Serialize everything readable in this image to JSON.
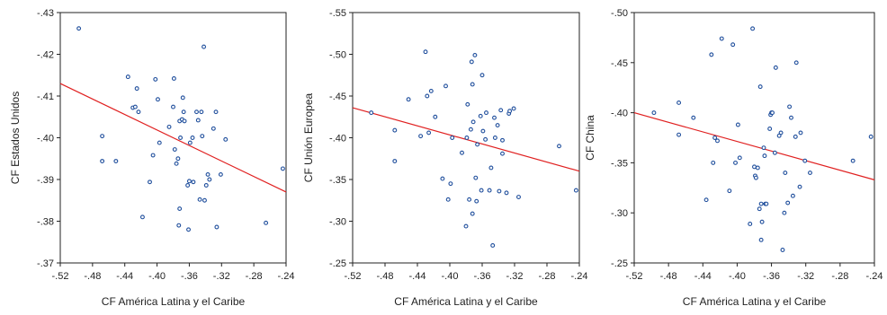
{
  "chart_data": [
    {
      "type": "scatter",
      "xlabel": "CF América Latina y el Caribe",
      "ylabel": "CF Estados Unidos",
      "xlim": [
        -0.52,
        -0.24
      ],
      "ylim": [
        -0.43,
        -0.37
      ],
      "xticks": [
        -0.52,
        -0.48,
        -0.44,
        -0.4,
        -0.36,
        -0.32,
        -0.28,
        -0.24
      ],
      "xtick_labels": [
        "-.52",
        "-.48",
        "-.44",
        "-.40",
        "-.36",
        "-.32",
        "-.28",
        "-.24"
      ],
      "yticks": [
        -0.37,
        -0.38,
        -0.39,
        -0.4,
        -0.41,
        -0.42,
        -0.43
      ],
      "ytick_labels": [
        "-.37",
        "-.38",
        "-.39",
        "-.40",
        "-.41",
        "-.42",
        "-.43"
      ],
      "grid": false,
      "trend_line": {
        "x": [
          -0.52,
          -0.24
        ],
        "y": [
          -0.413,
          -0.387
        ]
      },
      "points": [
        [
          -0.497,
          -0.4262
        ],
        [
          -0.468,
          -0.3944
        ],
        [
          -0.468,
          -0.4004
        ],
        [
          -0.451,
          -0.3944
        ],
        [
          -0.436,
          -0.4146
        ],
        [
          -0.43,
          -0.4072
        ],
        [
          -0.427,
          -0.4074
        ],
        [
          -0.425,
          -0.4118
        ],
        [
          -0.423,
          -0.4062
        ],
        [
          -0.418,
          -0.381
        ],
        [
          -0.409,
          -0.3894
        ],
        [
          -0.405,
          -0.3958
        ],
        [
          -0.402,
          -0.414
        ],
        [
          -0.399,
          -0.4092
        ],
        [
          -0.397,
          -0.3988
        ],
        [
          -0.385,
          -0.4026
        ],
        [
          -0.38,
          -0.4074
        ],
        [
          -0.379,
          -0.4142
        ],
        [
          -0.378,
          -0.3972
        ],
        [
          -0.376,
          -0.3938
        ],
        [
          -0.374,
          -0.395
        ],
        [
          -0.373,
          -0.379
        ],
        [
          -0.372,
          -0.383
        ],
        [
          -0.372,
          -0.404
        ],
        [
          -0.371,
          -0.4
        ],
        [
          -0.369,
          -0.4044
        ],
        [
          -0.368,
          -0.4096
        ],
        [
          -0.367,
          -0.4062
        ],
        [
          -0.366,
          -0.404
        ],
        [
          -0.362,
          -0.3886
        ],
        [
          -0.361,
          -0.378
        ],
        [
          -0.36,
          -0.3896
        ],
        [
          -0.359,
          -0.3988
        ],
        [
          -0.356,
          -0.4
        ],
        [
          -0.355,
          -0.3894
        ],
        [
          -0.351,
          -0.4062
        ],
        [
          -0.349,
          -0.4042
        ],
        [
          -0.347,
          -0.3852
        ],
        [
          -0.345,
          -0.4062
        ],
        [
          -0.344,
          -0.4004
        ],
        [
          -0.342,
          -0.4218
        ],
        [
          -0.341,
          -0.385
        ],
        [
          -0.339,
          -0.3886
        ],
        [
          -0.337,
          -0.3912
        ],
        [
          -0.335,
          -0.39
        ],
        [
          -0.33,
          -0.4022
        ],
        [
          -0.327,
          -0.4062
        ],
        [
          -0.326,
          -0.3786
        ],
        [
          -0.321,
          -0.3912
        ],
        [
          -0.315,
          -0.3996
        ],
        [
          -0.265,
          -0.3796
        ],
        [
          -0.244,
          -0.3926
        ]
      ]
    },
    {
      "type": "scatter",
      "xlabel": "CF América Latina y el Caribe",
      "ylabel": "CF Unión Europea",
      "xlim": [
        -0.52,
        -0.24
      ],
      "ylim": [
        -0.55,
        -0.25
      ],
      "xticks": [
        -0.52,
        -0.48,
        -0.44,
        -0.4,
        -0.36,
        -0.32,
        -0.28,
        -0.24
      ],
      "xtick_labels": [
        "-.52",
        "-.48",
        "-.44",
        "-.40",
        "-.36",
        "-.32",
        "-.28",
        "-.24"
      ],
      "yticks": [
        -0.25,
        -0.3,
        -0.35,
        -0.4,
        -0.45,
        -0.5,
        -0.55
      ],
      "ytick_labels": [
        "-.25",
        "-.30",
        "-.35",
        "-.40",
        "-.45",
        "-.50",
        "-.55"
      ],
      "grid": false,
      "trend_line": {
        "x": [
          -0.52,
          -0.24
        ],
        "y": [
          -0.436,
          -0.36
        ]
      },
      "points": [
        [
          -0.497,
          -0.43
        ],
        [
          -0.468,
          -0.372
        ],
        [
          -0.468,
          -0.409
        ],
        [
          -0.451,
          -0.446
        ],
        [
          -0.436,
          -0.402
        ],
        [
          -0.43,
          -0.503
        ],
        [
          -0.428,
          -0.45
        ],
        [
          -0.426,
          -0.406
        ],
        [
          -0.423,
          -0.456
        ],
        [
          -0.418,
          -0.425
        ],
        [
          -0.409,
          -0.351
        ],
        [
          -0.405,
          -0.462
        ],
        [
          -0.402,
          -0.326
        ],
        [
          -0.399,
          -0.345
        ],
        [
          -0.397,
          -0.4
        ],
        [
          -0.385,
          -0.382
        ],
        [
          -0.38,
          -0.294
        ],
        [
          -0.379,
          -0.4
        ],
        [
          -0.378,
          -0.44
        ],
        [
          -0.376,
          -0.326
        ],
        [
          -0.374,
          -0.41
        ],
        [
          -0.373,
          -0.491
        ],
        [
          -0.372,
          -0.309
        ],
        [
          -0.372,
          -0.464
        ],
        [
          -0.371,
          -0.419
        ],
        [
          -0.369,
          -0.499
        ],
        [
          -0.368,
          -0.352
        ],
        [
          -0.367,
          -0.324
        ],
        [
          -0.366,
          -0.392
        ],
        [
          -0.362,
          -0.426
        ],
        [
          -0.361,
          -0.337
        ],
        [
          -0.36,
          -0.475
        ],
        [
          -0.359,
          -0.408
        ],
        [
          -0.356,
          -0.398
        ],
        [
          -0.355,
          -0.43
        ],
        [
          -0.351,
          -0.337
        ],
        [
          -0.349,
          -0.364
        ],
        [
          -0.347,
          -0.271
        ],
        [
          -0.345,
          -0.424
        ],
        [
          -0.344,
          -0.4
        ],
        [
          -0.341,
          -0.415
        ],
        [
          -0.339,
          -0.336
        ],
        [
          -0.337,
          -0.433
        ],
        [
          -0.335,
          -0.397
        ],
        [
          -0.335,
          -0.381
        ],
        [
          -0.33,
          -0.334
        ],
        [
          -0.327,
          -0.429
        ],
        [
          -0.326,
          -0.432
        ],
        [
          -0.321,
          -0.435
        ],
        [
          -0.315,
          -0.329
        ],
        [
          -0.265,
          -0.39
        ],
        [
          -0.244,
          -0.337
        ]
      ]
    },
    {
      "type": "scatter",
      "xlabel": "CF América Latina y el Caribe",
      "ylabel": "CF China",
      "xlim": [
        -0.52,
        -0.24
      ],
      "ylim": [
        -0.5,
        -0.25
      ],
      "xticks": [
        -0.52,
        -0.48,
        -0.44,
        -0.4,
        -0.36,
        -0.32,
        -0.28,
        -0.24
      ],
      "xtick_labels": [
        "-.52",
        "-.48",
        "-.44",
        "-.40",
        "-.36",
        "-.32",
        "-.28",
        "-.24"
      ],
      "yticks": [
        -0.25,
        -0.3,
        -0.35,
        -0.4,
        -0.45,
        -0.5
      ],
      "ytick_labels": [
        "-.25",
        "-.30",
        "-.35",
        "-.40",
        "-.45",
        "-.50"
      ],
      "grid": false,
      "trend_line": {
        "x": [
          -0.52,
          -0.24
        ],
        "y": [
          -0.4,
          -0.333
        ]
      },
      "points": [
        [
          -0.497,
          -0.4
        ],
        [
          -0.468,
          -0.378
        ],
        [
          -0.468,
          -0.41
        ],
        [
          -0.451,
          -0.395
        ],
        [
          -0.436,
          -0.313
        ],
        [
          -0.43,
          -0.458
        ],
        [
          -0.428,
          -0.35
        ],
        [
          -0.426,
          -0.375
        ],
        [
          -0.423,
          -0.372
        ],
        [
          -0.418,
          -0.474
        ],
        [
          -0.409,
          -0.322
        ],
        [
          -0.405,
          -0.468
        ],
        [
          -0.402,
          -0.35
        ],
        [
          -0.399,
          -0.388
        ],
        [
          -0.397,
          -0.355
        ],
        [
          -0.385,
          -0.289
        ],
        [
          -0.382,
          -0.484
        ],
        [
          -0.38,
          -0.346
        ],
        [
          -0.379,
          -0.337
        ],
        [
          -0.378,
          -0.335
        ],
        [
          -0.376,
          -0.345
        ],
        [
          -0.374,
          -0.304
        ],
        [
          -0.373,
          -0.426
        ],
        [
          -0.372,
          -0.273
        ],
        [
          -0.372,
          -0.309
        ],
        [
          -0.371,
          -0.291
        ],
        [
          -0.369,
          -0.365
        ],
        [
          -0.368,
          -0.357
        ],
        [
          -0.367,
          -0.309
        ],
        [
          -0.366,
          -0.309
        ],
        [
          -0.362,
          -0.384
        ],
        [
          -0.361,
          -0.398
        ],
        [
          -0.36,
          -0.4
        ],
        [
          -0.359,
          -0.4
        ],
        [
          -0.356,
          -0.36
        ],
        [
          -0.355,
          -0.445
        ],
        [
          -0.351,
          -0.377
        ],
        [
          -0.349,
          -0.38
        ],
        [
          -0.347,
          -0.263
        ],
        [
          -0.345,
          -0.3
        ],
        [
          -0.344,
          -0.34
        ],
        [
          -0.341,
          -0.31
        ],
        [
          -0.339,
          -0.406
        ],
        [
          -0.337,
          -0.395
        ],
        [
          -0.335,
          -0.317
        ],
        [
          -0.332,
          -0.376
        ],
        [
          -0.331,
          -0.45
        ],
        [
          -0.327,
          -0.326
        ],
        [
          -0.326,
          -0.38
        ],
        [
          -0.321,
          -0.352
        ],
        [
          -0.315,
          -0.34
        ],
        [
          -0.265,
          -0.352
        ],
        [
          -0.244,
          -0.376
        ]
      ]
    }
  ],
  "colors": {
    "marker": "#1f4e9c",
    "trend_line": "#e02020",
    "axis": "#222222"
  }
}
